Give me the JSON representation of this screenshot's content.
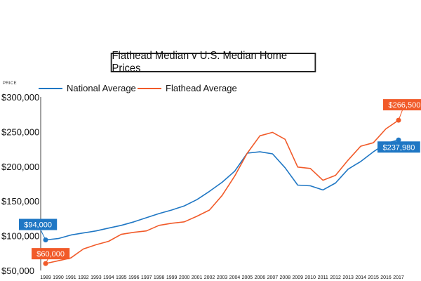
{
  "chart_data": {
    "type": "line",
    "title": "Flathead Median v U.S. Median Home Prices",
    "ylabel": "PRICE",
    "xlabel": "",
    "ylim": [
      50000,
      300000
    ],
    "yticks": [
      {
        "value": 300000,
        "label": "$300,000"
      },
      {
        "value": 250000,
        "label": "$250,000"
      },
      {
        "value": 200000,
        "label": "$200,000"
      },
      {
        "value": 150000,
        "label": "$150,000"
      },
      {
        "value": 100000,
        "label": "$100,000"
      },
      {
        "value": 50000,
        "label": "$50,000"
      }
    ],
    "x": [
      "1989",
      "1990",
      "1991",
      "1992",
      "1993",
      "1994",
      "1995",
      "1996",
      "1997",
      "1998",
      "1999",
      "2000",
      "2001",
      "2002",
      "2003",
      "2004",
      "2005",
      "2006",
      "2007",
      "2008",
      "2009",
      "2010",
      "2011",
      "2012",
      "2013",
      "2014",
      "2015",
      "2016",
      "2017"
    ],
    "grid": false,
    "legend_position": "top-left",
    "series": [
      {
        "name": "National Average",
        "color": "#1f77c4",
        "values": [
          94000,
          96000,
          101000,
          104000,
          107000,
          111000,
          115000,
          120000,
          126000,
          132000,
          137000,
          143000,
          152000,
          164000,
          177000,
          193000,
          219000,
          221000,
          218000,
          198000,
          173000,
          172000,
          166000,
          176000,
          196000,
          207000,
          221000,
          233000,
          237980
        ],
        "callout": {
          "label": "$94,000",
          "index": 0,
          "color": "#1f77c4"
        },
        "end_callout": {
          "label": "$237,980",
          "index": 28,
          "color": "#1f77c4"
        }
      },
      {
        "name": "Flathead Average",
        "color": "#f15a29",
        "values": [
          60000,
          64000,
          68000,
          81000,
          87000,
          92000,
          102000,
          105000,
          107000,
          115000,
          118000,
          120000,
          128000,
          137000,
          158000,
          186000,
          219000,
          244000,
          249000,
          239000,
          199000,
          197000,
          180000,
          187000,
          209000,
          229000,
          234000,
          254000,
          266500
        ],
        "callout": {
          "label": "$60,000",
          "index": 0,
          "color": "#f15a29"
        },
        "end_callout": {
          "label": "$266,500",
          "index": 28,
          "color": "#f15a29"
        }
      }
    ]
  }
}
